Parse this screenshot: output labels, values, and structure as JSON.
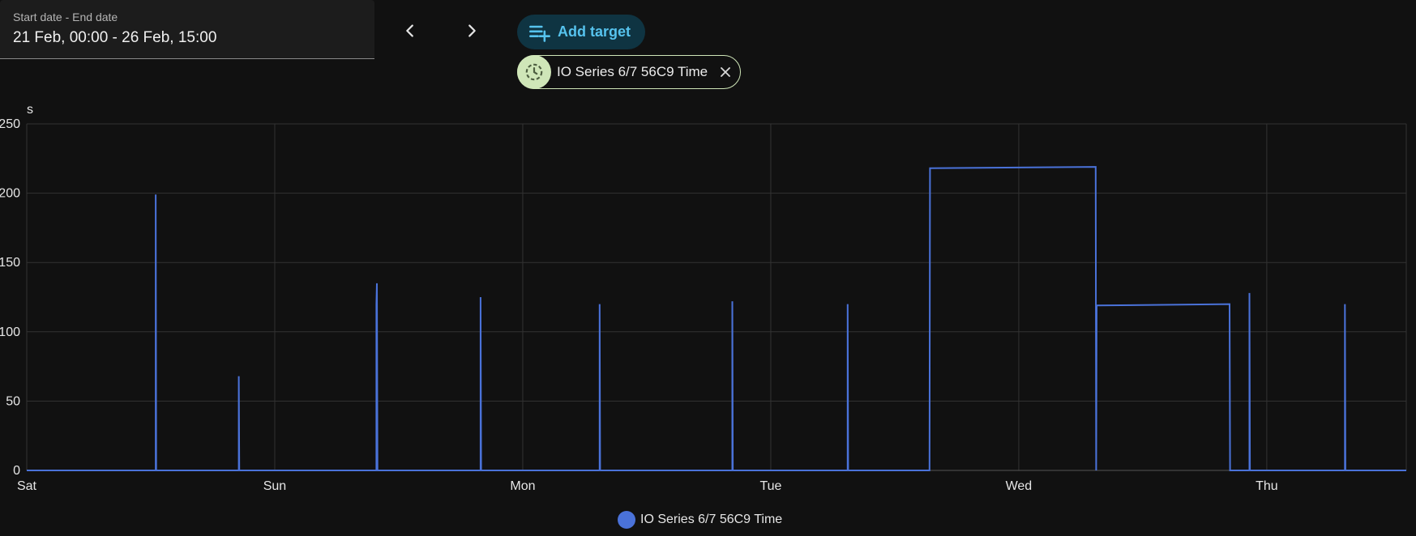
{
  "date_picker": {
    "label": "Start date - End date",
    "value": "21 Feb, 00:00 - 26 Feb, 15:00"
  },
  "nav": {
    "prev_icon": "chevron-left-icon",
    "next_icon": "chevron-right-icon"
  },
  "add_target": {
    "label": "Add target",
    "icon": "playlist-plus-icon"
  },
  "target_chip": {
    "label": "IO Series 6/7 56C9 Time",
    "icon": "clock-history-icon",
    "close_icon": "close-icon"
  },
  "colors": {
    "series": "#4a72d9",
    "accent": "#56c3ee",
    "chip": "#cfe6b8"
  },
  "chart_data": {
    "type": "line",
    "ylabel": "s",
    "ylim": [
      0,
      250
    ],
    "yticks": [
      0,
      50,
      100,
      150,
      200,
      250
    ],
    "xlim_days": [
      0,
      5.5625
    ],
    "xticks": [
      {
        "day": 0,
        "label": "Sat"
      },
      {
        "day": 1,
        "label": "Sun"
      },
      {
        "day": 2,
        "label": "Mon"
      },
      {
        "day": 3,
        "label": "Tue"
      },
      {
        "day": 4,
        "label": "Wed"
      },
      {
        "day": 5,
        "label": "Thu"
      }
    ],
    "grid": true,
    "legend_position": "bottom-center",
    "series": [
      {
        "name": "IO Series 6/7 56C9 Time",
        "points": [
          [
            0,
            0
          ],
          [
            0.52,
            0
          ],
          [
            0.52,
            199
          ],
          [
            0.522,
            0
          ],
          [
            0.855,
            0
          ],
          [
            0.855,
            68
          ],
          [
            0.857,
            0
          ],
          [
            1.41,
            0
          ],
          [
            1.41,
            120
          ],
          [
            1.412,
            135
          ],
          [
            1.414,
            0
          ],
          [
            1.83,
            0
          ],
          [
            1.83,
            125
          ],
          [
            1.832,
            0
          ],
          [
            2.31,
            0
          ],
          [
            2.31,
            120
          ],
          [
            2.312,
            0
          ],
          [
            2.845,
            0
          ],
          [
            2.845,
            122
          ],
          [
            2.847,
            0
          ],
          [
            3.31,
            0
          ],
          [
            3.31,
            120
          ],
          [
            3.312,
            0
          ],
          [
            3.64,
            0
          ],
          [
            3.642,
            218
          ],
          [
            4.31,
            219
          ],
          [
            4.312,
            0
          ],
          [
            4.314,
            119
          ],
          [
            4.85,
            120
          ],
          [
            4.852,
            0
          ],
          [
            4.93,
            0
          ],
          [
            4.93,
            128
          ],
          [
            4.932,
            0
          ],
          [
            5.315,
            0
          ],
          [
            5.315,
            120
          ],
          [
            5.317,
            0
          ],
          [
            5.5625,
            0
          ]
        ]
      }
    ]
  }
}
